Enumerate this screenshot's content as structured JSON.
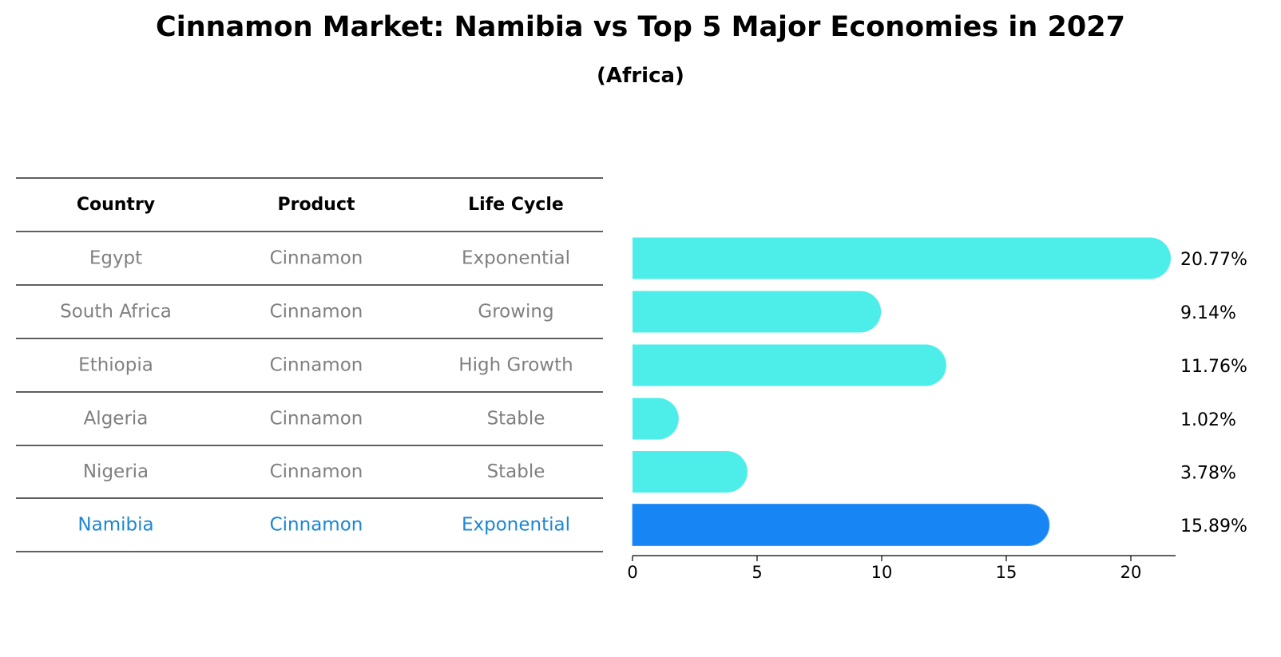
{
  "title": "Cinnamon Market: Namibia vs Top 5 Major Economies in 2027",
  "subtitle": "(Africa)",
  "table": {
    "headers": [
      "Country",
      "Product",
      "Life Cycle"
    ],
    "rows": [
      {
        "country": "Egypt",
        "product": "Cinnamon",
        "life_cycle": "Exponential",
        "highlight": false
      },
      {
        "country": "South Africa",
        "product": "Cinnamon",
        "life_cycle": "Growing",
        "highlight": false
      },
      {
        "country": "Ethiopia",
        "product": "Cinnamon",
        "life_cycle": "High Growth",
        "highlight": false
      },
      {
        "country": "Algeria",
        "product": "Cinnamon",
        "life_cycle": "Stable",
        "highlight": false
      },
      {
        "country": "Nigeria",
        "product": "Cinnamon",
        "life_cycle": "Stable",
        "highlight": false
      },
      {
        "country": "Namibia",
        "product": "Cinnamon",
        "life_cycle": "Exponential",
        "highlight": true
      }
    ]
  },
  "chart_data": {
    "type": "bar",
    "orientation": "horizontal",
    "categories": [
      "Egypt",
      "South Africa",
      "Ethiopia",
      "Algeria",
      "Nigeria",
      "Namibia"
    ],
    "values": [
      20.77,
      9.14,
      11.76,
      1.02,
      3.78,
      15.89
    ],
    "value_labels": [
      "20.77%",
      "9.14%",
      "11.76%",
      "1.02%",
      "3.78%",
      "15.89%"
    ],
    "xlim": [
      0,
      21.8
    ],
    "xticks": [
      0,
      5,
      10,
      15,
      20
    ],
    "highlight_category": "Namibia",
    "grid": false,
    "colors": {
      "default": "#4deeea",
      "highlight": "#1785f3",
      "highlight_text": "#1c86d6",
      "muted_text": "#808080"
    }
  }
}
